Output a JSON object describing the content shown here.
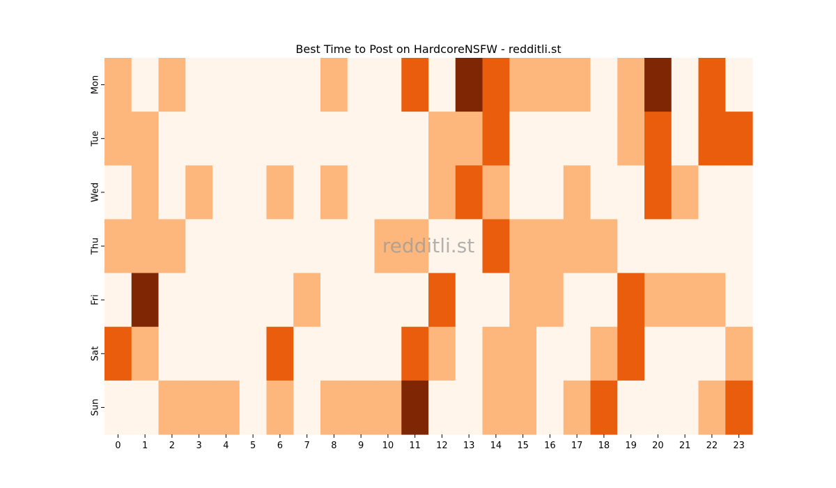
{
  "chart_data": {
    "type": "heatmap",
    "title": "Best Time to Post on HardcoreNSFW - redditli.st",
    "xlabel": "",
    "ylabel": "",
    "x_categories": [
      "0",
      "1",
      "2",
      "3",
      "4",
      "5",
      "6",
      "7",
      "8",
      "9",
      "10",
      "11",
      "12",
      "13",
      "14",
      "15",
      "16",
      "17",
      "18",
      "19",
      "20",
      "21",
      "22",
      "23"
    ],
    "y_categories": [
      "Mon",
      "Tue",
      "Wed",
      "Thu",
      "Fri",
      "Sat",
      "Sun"
    ],
    "values": [
      [
        1,
        0,
        1,
        0,
        0,
        0,
        0,
        0,
        1,
        0,
        0,
        2,
        0,
        3,
        2,
        1,
        1,
        1,
        0,
        1,
        3,
        0,
        2,
        0
      ],
      [
        1,
        1,
        0,
        0,
        0,
        0,
        0,
        0,
        0,
        0,
        0,
        0,
        1,
        1,
        2,
        0,
        0,
        0,
        0,
        1,
        2,
        0,
        2,
        2
      ],
      [
        0,
        1,
        0,
        1,
        0,
        0,
        1,
        0,
        1,
        0,
        0,
        0,
        1,
        2,
        1,
        0,
        0,
        1,
        0,
        0,
        2,
        1,
        0,
        0
      ],
      [
        1,
        1,
        1,
        0,
        0,
        0,
        0,
        0,
        0,
        0,
        1,
        1,
        0,
        0,
        2,
        1,
        1,
        1,
        1,
        0,
        0,
        0,
        0,
        0
      ],
      [
        0,
        3,
        0,
        0,
        0,
        0,
        0,
        1,
        0,
        0,
        0,
        0,
        2,
        0,
        0,
        1,
        1,
        0,
        0,
        2,
        1,
        1,
        1,
        0
      ],
      [
        2,
        1,
        0,
        0,
        0,
        0,
        2,
        0,
        0,
        0,
        0,
        2,
        1,
        0,
        1,
        1,
        0,
        0,
        1,
        2,
        0,
        0,
        0,
        1
      ],
      [
        0,
        0,
        1,
        1,
        1,
        0,
        1,
        0,
        1,
        1,
        1,
        3,
        0,
        0,
        1,
        1,
        0,
        1,
        2,
        0,
        0,
        0,
        1,
        2
      ]
    ],
    "colorscale": [
      "#fff5eb",
      "#fdb77c",
      "#e95d0d",
      "#7f2704"
    ],
    "colorbar": false,
    "grid": false,
    "watermark": "redditli.st"
  }
}
